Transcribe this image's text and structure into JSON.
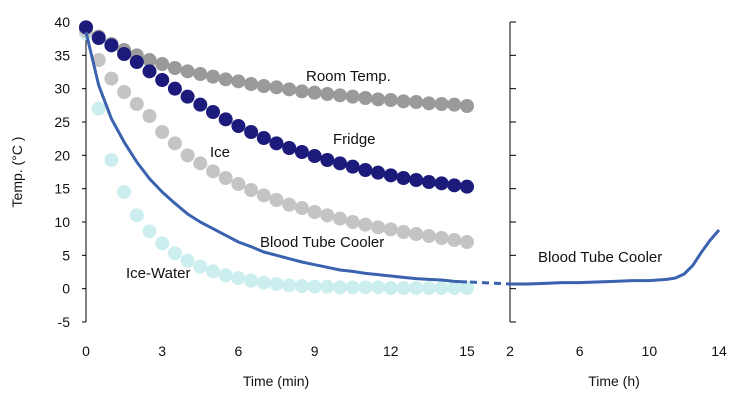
{
  "chart_data": [
    {
      "type": "scatter",
      "panel": "minutes",
      "xlabel": "Time (min)",
      "ylabel": "Temp. (°C )",
      "xlim": [
        0,
        15
      ],
      "ylim": [
        -5,
        40
      ],
      "xticks": [
        "0",
        "3",
        "6",
        "9",
        "12",
        "15"
      ],
      "yticks": [
        "-5",
        "0",
        "5",
        "10",
        "15",
        "20",
        "25",
        "30",
        "35",
        "40"
      ],
      "grid": false,
      "series": [
        {
          "name": "Room Temp.",
          "style": "dots",
          "color": "#9a9a9a",
          "x": [
            0,
            0.5,
            1,
            1.5,
            2,
            2.5,
            3,
            3.5,
            4,
            4.5,
            5,
            5.5,
            6,
            6.5,
            7,
            7.5,
            8,
            8.5,
            9,
            9.5,
            10,
            10.5,
            11,
            11.5,
            12,
            12.5,
            13,
            13.5,
            14,
            14.5,
            15
          ],
          "y": [
            39.2,
            37.8,
            36.7,
            35.8,
            35.0,
            34.3,
            33.7,
            33.1,
            32.6,
            32.2,
            31.8,
            31.4,
            31.1,
            30.7,
            30.4,
            30.2,
            29.9,
            29.6,
            29.4,
            29.2,
            29.0,
            28.8,
            28.6,
            28.4,
            28.3,
            28.1,
            28.0,
            27.8,
            27.7,
            27.6,
            27.4
          ]
        },
        {
          "name": "Fridge",
          "style": "dots",
          "color": "#1c1a7a",
          "x": [
            0,
            0.5,
            1,
            1.5,
            2,
            2.5,
            3,
            3.5,
            4,
            4.5,
            5,
            5.5,
            6,
            6.5,
            7,
            7.5,
            8,
            8.5,
            9,
            9.5,
            10,
            10.5,
            11,
            11.5,
            12,
            12.5,
            13,
            13.5,
            14,
            14.5,
            15
          ],
          "y": [
            39.2,
            37.6,
            36.5,
            35.2,
            34.0,
            32.6,
            31.3,
            30.0,
            28.8,
            27.6,
            26.5,
            25.4,
            24.4,
            23.5,
            22.6,
            21.8,
            21.1,
            20.5,
            19.9,
            19.3,
            18.8,
            18.3,
            17.8,
            17.4,
            17.0,
            16.6,
            16.3,
            16.0,
            15.8,
            15.5,
            15.3
          ]
        },
        {
          "name": "Ice",
          "style": "dots",
          "color": "#c4c4c4",
          "x": [
            0,
            0.5,
            1,
            1.5,
            2,
            2.5,
            3,
            3.5,
            4,
            4.5,
            5,
            5.5,
            6,
            6.5,
            7,
            7.5,
            8,
            8.5,
            9,
            9.5,
            10,
            10.5,
            11,
            11.5,
            12,
            12.5,
            13,
            13.5,
            14,
            14.5,
            15
          ],
          "y": [
            38.7,
            34.3,
            31.5,
            29.5,
            27.7,
            25.9,
            23.5,
            21.8,
            20.0,
            18.8,
            17.6,
            16.6,
            15.7,
            14.8,
            14.0,
            13.3,
            12.6,
            12.1,
            11.5,
            11.0,
            10.5,
            10.0,
            9.6,
            9.2,
            8.9,
            8.5,
            8.2,
            7.9,
            7.6,
            7.3,
            7.0
          ]
        },
        {
          "name": "Ice-Water",
          "style": "dots",
          "color": "#cdeeee",
          "x": [
            0,
            0.5,
            1,
            1.5,
            2,
            2.5,
            3,
            3.5,
            4,
            4.5,
            5,
            5.5,
            6,
            6.5,
            7,
            7.5,
            8,
            8.5,
            9,
            9.5,
            10,
            10.5,
            11,
            11.5,
            12,
            12.5,
            13,
            13.5,
            14,
            14.5,
            15
          ],
          "y": [
            38.3,
            27.0,
            19.3,
            14.5,
            11.0,
            8.6,
            6.8,
            5.3,
            4.2,
            3.3,
            2.6,
            2.0,
            1.6,
            1.2,
            0.9,
            0.7,
            0.5,
            0.4,
            0.3,
            0.3,
            0.2,
            0.2,
            0.2,
            0.2,
            0.1,
            0.1,
            0.1,
            0.1,
            0.1,
            0.1,
            0.1
          ]
        },
        {
          "name": "Blood Tube Cooler",
          "style": "line",
          "color": "#3a62ae",
          "x": [
            0,
            0.5,
            1,
            1.5,
            2,
            2.5,
            3,
            3.5,
            4,
            4.5,
            5,
            5.5,
            6,
            6.5,
            7,
            7.5,
            8,
            8.5,
            9,
            9.5,
            10,
            10.5,
            11,
            11.5,
            12,
            12.5,
            13,
            13.5,
            14,
            14.5,
            15
          ],
          "y": [
            38.5,
            30.5,
            25.5,
            22.0,
            19.0,
            16.5,
            14.5,
            12.8,
            11.2,
            10.0,
            9.0,
            8.0,
            7.0,
            6.3,
            5.5,
            5.0,
            4.5,
            4.0,
            3.6,
            3.2,
            2.8,
            2.6,
            2.3,
            2.1,
            1.9,
            1.7,
            1.5,
            1.4,
            1.3,
            1.1,
            1.0
          ]
        }
      ],
      "annotations": [
        "Room Temp.",
        "Fridge",
        "Ice",
        "Blood Tube Cooler",
        "Ice-Water"
      ]
    },
    {
      "type": "line",
      "panel": "hours",
      "xlabel": "Time (h)",
      "xlim": [
        2,
        14
      ],
      "ylim": [
        -5,
        40
      ],
      "xticks": [
        "2",
        "6",
        "10",
        "14"
      ],
      "grid": false,
      "series": [
        {
          "name": "Blood Tube Cooler",
          "color": "#3a62ae",
          "x": [
            2,
            3,
            4,
            5,
            6,
            7,
            8,
            9,
            10,
            11,
            11.5,
            12,
            12.5,
            13,
            13.5,
            14
          ],
          "y": [
            0.7,
            0.7,
            0.8,
            0.9,
            0.9,
            1.0,
            1.1,
            1.2,
            1.2,
            1.4,
            1.6,
            2.2,
            3.5,
            5.5,
            7.3,
            8.8
          ]
        }
      ],
      "annotations": [
        "Blood Tube Cooler"
      ]
    }
  ]
}
